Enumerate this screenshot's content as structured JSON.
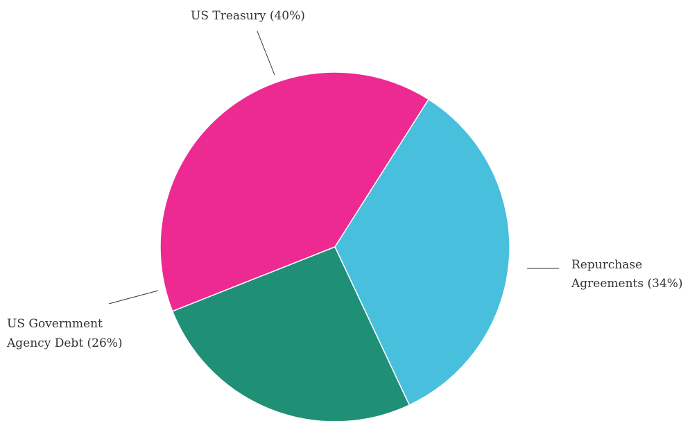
{
  "chart_data": {
    "type": "pie",
    "title": "",
    "slices": [
      {
        "key": "us-treasury",
        "label_lines": [
          "US Treasury (40%)"
        ],
        "value": 40,
        "color": "#EC2A92"
      },
      {
        "key": "repurchase-agreements",
        "label_lines": [
          "Repurchase",
          "Agreements (34%)"
        ],
        "value": 34,
        "color": "#48BFDD"
      },
      {
        "key": "us-government-agency-debt",
        "label_lines": [
          "US Government",
          "Agency Debt (26%)"
        ],
        "value": 26,
        "color": "#1F8F76"
      }
    ]
  }
}
